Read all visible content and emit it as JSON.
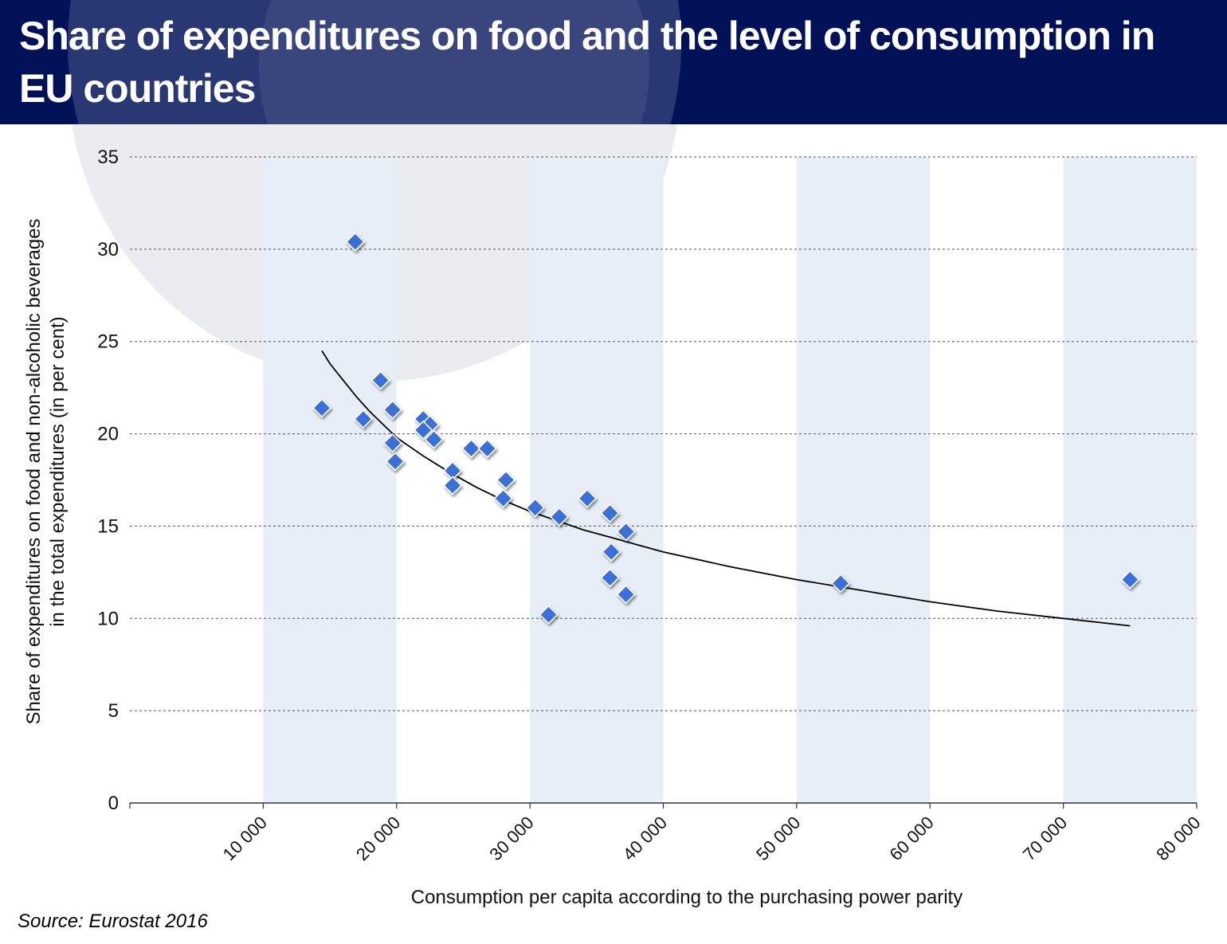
{
  "title": "Share of expenditures on food and the level of consumption in EU countries",
  "source": "Source: Eurostat 2016",
  "colors": {
    "header": "#001158",
    "band": "#e8eef8",
    "marker": "#3a6fd8",
    "trend": "#000000"
  },
  "chart_data": {
    "type": "scatter",
    "title": "Share of expenditures on food and the level of consumption in EU countries",
    "xlabel": "Consumption per capita according to the purchasing power parity",
    "ylabel_lines": [
      "Share of expenditures on food and non-alcoholic beverages",
      "in the total expenditures (in per cent)"
    ],
    "xlim": [
      0,
      80000
    ],
    "ylim": [
      0,
      35
    ],
    "x_ticks": [
      10000,
      20000,
      30000,
      40000,
      50000,
      60000,
      70000,
      80000
    ],
    "x_tick_labels": [
      "10 000",
      "20 000",
      "30 000",
      "40 000",
      "50 000",
      "60 000",
      "70 000",
      "80 000"
    ],
    "y_ticks": [
      0,
      5,
      10,
      15,
      20,
      25,
      30,
      35
    ],
    "y_tick_labels": [
      "0",
      "5",
      "10",
      "15",
      "20",
      "25",
      "30",
      "35"
    ],
    "grid": "horizontal dashed",
    "shaded_x_ranges": [
      [
        10000,
        20000
      ],
      [
        30000,
        40000
      ],
      [
        50000,
        60000
      ],
      [
        70000,
        80000
      ]
    ],
    "series": [
      {
        "type": "scatter",
        "marker": "diamond",
        "points": [
          [
            14400,
            21.4
          ],
          [
            16900,
            30.4
          ],
          [
            17500,
            20.8
          ],
          [
            18800,
            22.9
          ],
          [
            19700,
            21.3
          ],
          [
            19700,
            19.5
          ],
          [
            19900,
            18.5
          ],
          [
            22000,
            20.8
          ],
          [
            22500,
            20.5
          ],
          [
            22000,
            20.2
          ],
          [
            22800,
            19.7
          ],
          [
            24200,
            18.0
          ],
          [
            24200,
            17.2
          ],
          [
            25600,
            19.2
          ],
          [
            26800,
            19.2
          ],
          [
            28200,
            17.5
          ],
          [
            28000,
            16.5
          ],
          [
            30400,
            16.0
          ],
          [
            32200,
            15.5
          ],
          [
            34300,
            16.5
          ],
          [
            36000,
            15.7
          ],
          [
            36100,
            13.6
          ],
          [
            36000,
            12.2
          ],
          [
            37200,
            14.7
          ],
          [
            37200,
            11.3
          ],
          [
            31400,
            10.2
          ],
          [
            53300,
            11.9
          ],
          [
            75000,
            12.1
          ]
        ]
      },
      {
        "type": "line",
        "curve": "trend",
        "points": [
          [
            14400,
            24.5
          ],
          [
            15000,
            23.8
          ],
          [
            16000,
            22.9
          ],
          [
            17000,
            22.0
          ],
          [
            18000,
            21.2
          ],
          [
            19000,
            20.5
          ],
          [
            20000,
            19.8
          ],
          [
            22000,
            18.8
          ],
          [
            24000,
            17.9
          ],
          [
            26000,
            17.1
          ],
          [
            28000,
            16.4
          ],
          [
            30000,
            15.8
          ],
          [
            32000,
            15.3
          ],
          [
            34000,
            14.8
          ],
          [
            36000,
            14.4
          ],
          [
            38000,
            14.0
          ],
          [
            40000,
            13.6
          ],
          [
            45000,
            12.8
          ],
          [
            50000,
            12.1
          ],
          [
            55000,
            11.5
          ],
          [
            60000,
            10.9
          ],
          [
            65000,
            10.4
          ],
          [
            70000,
            10.0
          ],
          [
            75000,
            9.6
          ]
        ]
      }
    ]
  }
}
